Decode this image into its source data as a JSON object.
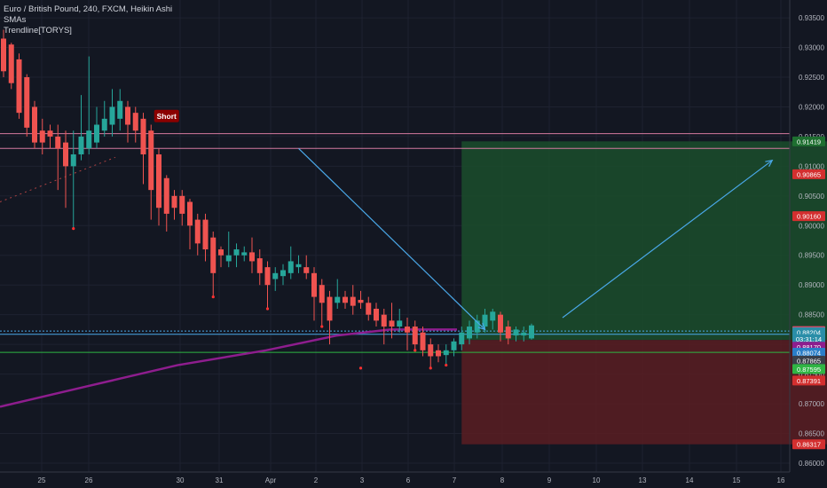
{
  "header": {
    "title": "Euro / British Pound, 240, FXCM, Heikin Ashi",
    "indicator1": "SMAs",
    "indicator2": "Trendline[TORYS]"
  },
  "colors": {
    "background": "#131722",
    "grid": "#1e2230",
    "up": "#26a69a",
    "down": "#ef5350",
    "profit_zone": "#1b4d2b",
    "loss_zone": "#5a1d22",
    "sma": "#8e1d8e",
    "arrow": "#4aa8e8",
    "level_pink": "#d47a9f",
    "level_blue": "#4aa8e8",
    "level_green": "#2fb544"
  },
  "short_label": "Short",
  "chart_data": {
    "type": "candlestick",
    "title": "Euro / British Pound, 240, FXCM, Heikin Ashi",
    "ylim": [
      0.8585,
      0.938
    ],
    "y_ticks": [
      0.935,
      0.93,
      0.925,
      0.92,
      0.915,
      0.91,
      0.905,
      0.9,
      0.895,
      0.89,
      0.885,
      0.88,
      0.875,
      0.87,
      0.865,
      0.86
    ],
    "y_tick_labels": [
      "0.93500",
      "0.93000",
      "0.92500",
      "0.92000",
      "0.91500",
      "0.91000",
      "0.90500",
      "0.90000",
      "0.89500",
      "0.89000",
      "0.88500",
      "0.88000",
      "0.87500",
      "0.87000",
      "0.86500",
      "0.86000"
    ],
    "x_tick_labels": [
      "25",
      "26",
      "30",
      "31",
      "Apr",
      "2",
      "3",
      "6",
      "7",
      "8",
      "9",
      "10",
      "13",
      "14",
      "15",
      "16"
    ],
    "bars_per_day": 6,
    "candles": [
      {
        "o": 0.9315,
        "h": 0.933,
        "l": 0.925,
        "c": 0.926
      },
      {
        "o": 0.9305,
        "h": 0.9308,
        "l": 0.923,
        "c": 0.924
      },
      {
        "o": 0.928,
        "h": 0.929,
        "l": 0.918,
        "c": 0.919
      },
      {
        "o": 0.925,
        "h": 0.9255,
        "l": 0.915,
        "c": 0.9165
      },
      {
        "o": 0.92,
        "h": 0.921,
        "l": 0.913,
        "c": 0.914
      },
      {
        "o": 0.916,
        "h": 0.918,
        "l": 0.912,
        "c": 0.914
      },
      {
        "o": 0.916,
        "h": 0.917,
        "l": 0.913,
        "c": 0.915
      },
      {
        "o": 0.915,
        "h": 0.917,
        "l": 0.906,
        "c": 0.913
      },
      {
        "o": 0.914,
        "h": 0.916,
        "l": 0.903,
        "c": 0.91
      },
      {
        "o": 0.91,
        "h": 0.916,
        "l": 0.8995,
        "c": 0.912
      },
      {
        "o": 0.912,
        "h": 0.922,
        "l": 0.911,
        "c": 0.915
      },
      {
        "o": 0.913,
        "h": 0.9285,
        "l": 0.912,
        "c": 0.916
      },
      {
        "o": 0.914,
        "h": 0.92,
        "l": 0.913,
        "c": 0.917
      },
      {
        "o": 0.916,
        "h": 0.921,
        "l": 0.915,
        "c": 0.918
      },
      {
        "o": 0.917,
        "h": 0.923,
        "l": 0.915,
        "c": 0.92
      },
      {
        "o": 0.918,
        "h": 0.923,
        "l": 0.916,
        "c": 0.921
      },
      {
        "o": 0.92,
        "h": 0.921,
        "l": 0.914,
        "c": 0.917
      },
      {
        "o": 0.919,
        "h": 0.92,
        "l": 0.914,
        "c": 0.916
      },
      {
        "o": 0.918,
        "h": 0.919,
        "l": 0.907,
        "c": 0.912
      },
      {
        "o": 0.916,
        "h": 0.917,
        "l": 0.901,
        "c": 0.906
      },
      {
        "o": 0.912,
        "h": 0.913,
        "l": 0.9,
        "c": 0.903
      },
      {
        "o": 0.908,
        "h": 0.9085,
        "l": 0.899,
        "c": 0.902
      },
      {
        "o": 0.905,
        "h": 0.906,
        "l": 0.901,
        "c": 0.903
      },
      {
        "o": 0.905,
        "h": 0.906,
        "l": 0.9,
        "c": 0.902
      },
      {
        "o": 0.904,
        "h": 0.9045,
        "l": 0.896,
        "c": 0.9
      },
      {
        "o": 0.901,
        "h": 0.902,
        "l": 0.895,
        "c": 0.897
      },
      {
        "o": 0.901,
        "h": 0.902,
        "l": 0.894,
        "c": 0.896
      },
      {
        "o": 0.898,
        "h": 0.899,
        "l": 0.888,
        "c": 0.892
      },
      {
        "o": 0.896,
        "h": 0.8965,
        "l": 0.893,
        "c": 0.895
      },
      {
        "o": 0.894,
        "h": 0.899,
        "l": 0.893,
        "c": 0.895
      },
      {
        "o": 0.895,
        "h": 0.897,
        "l": 0.893,
        "c": 0.896
      },
      {
        "o": 0.895,
        "h": 0.8965,
        "l": 0.894,
        "c": 0.8955
      },
      {
        "o": 0.8955,
        "h": 0.898,
        "l": 0.892,
        "c": 0.894
      },
      {
        "o": 0.8945,
        "h": 0.896,
        "l": 0.89,
        "c": 0.892
      },
      {
        "o": 0.893,
        "h": 0.894,
        "l": 0.886,
        "c": 0.89
      },
      {
        "o": 0.891,
        "h": 0.893,
        "l": 0.889,
        "c": 0.892
      },
      {
        "o": 0.8915,
        "h": 0.8935,
        "l": 0.89,
        "c": 0.8925
      },
      {
        "o": 0.892,
        "h": 0.8965,
        "l": 0.891,
        "c": 0.894
      },
      {
        "o": 0.893,
        "h": 0.895,
        "l": 0.892,
        "c": 0.8935
      },
      {
        "o": 0.893,
        "h": 0.895,
        "l": 0.891,
        "c": 0.892
      },
      {
        "o": 0.892,
        "h": 0.893,
        "l": 0.884,
        "c": 0.888
      },
      {
        "o": 0.89,
        "h": 0.891,
        "l": 0.883,
        "c": 0.887
      },
      {
        "o": 0.888,
        "h": 0.889,
        "l": 0.88,
        "c": 0.884
      },
      {
        "o": 0.887,
        "h": 0.891,
        "l": 0.886,
        "c": 0.888
      },
      {
        "o": 0.888,
        "h": 0.889,
        "l": 0.886,
        "c": 0.887
      },
      {
        "o": 0.888,
        "h": 0.89,
        "l": 0.885,
        "c": 0.8865
      },
      {
        "o": 0.8875,
        "h": 0.889,
        "l": 0.886,
        "c": 0.887
      },
      {
        "o": 0.887,
        "h": 0.888,
        "l": 0.884,
        "c": 0.885
      },
      {
        "o": 0.886,
        "h": 0.887,
        "l": 0.883,
        "c": 0.884
      },
      {
        "o": 0.885,
        "h": 0.886,
        "l": 0.88,
        "c": 0.883
      },
      {
        "o": 0.884,
        "h": 0.887,
        "l": 0.881,
        "c": 0.883
      },
      {
        "o": 0.883,
        "h": 0.886,
        "l": 0.882,
        "c": 0.884
      },
      {
        "o": 0.883,
        "h": 0.8845,
        "l": 0.879,
        "c": 0.882
      },
      {
        "o": 0.883,
        "h": 0.884,
        "l": 0.879,
        "c": 0.88
      },
      {
        "o": 0.882,
        "h": 0.883,
        "l": 0.878,
        "c": 0.879
      },
      {
        "o": 0.88,
        "h": 0.881,
        "l": 0.876,
        "c": 0.878
      },
      {
        "o": 0.879,
        "h": 0.88,
        "l": 0.877,
        "c": 0.878
      },
      {
        "o": 0.8782,
        "h": 0.88,
        "l": 0.8765,
        "c": 0.879
      },
      {
        "o": 0.879,
        "h": 0.881,
        "l": 0.878,
        "c": 0.8805
      },
      {
        "o": 0.88,
        "h": 0.883,
        "l": 0.879,
        "c": 0.882
      },
      {
        "o": 0.881,
        "h": 0.884,
        "l": 0.88,
        "c": 0.883
      },
      {
        "o": 0.882,
        "h": 0.885,
        "l": 0.881,
        "c": 0.884
      },
      {
        "o": 0.883,
        "h": 0.886,
        "l": 0.882,
        "c": 0.885
      },
      {
        "o": 0.884,
        "h": 0.886,
        "l": 0.8825,
        "c": 0.8855
      },
      {
        "o": 0.885,
        "h": 0.8855,
        "l": 0.8805,
        "c": 0.882
      },
      {
        "o": 0.883,
        "h": 0.884,
        "l": 0.88,
        "c": 0.881
      },
      {
        "o": 0.8815,
        "h": 0.883,
        "l": 0.8805,
        "c": 0.8825
      },
      {
        "o": 0.8815,
        "h": 0.883,
        "l": 0.8805,
        "c": 0.882
      },
      {
        "o": 0.881,
        "h": 0.8835,
        "l": 0.8808,
        "c": 0.8832
      }
    ],
    "sma": [
      [
        0,
        0.904
      ],
      [
        30,
        0.905
      ],
      [
        60,
        0.908
      ],
      [
        110,
        0.911
      ],
      [
        130,
        0.913
      ],
      [
        150,
        0.912
      ]
    ],
    "sma2": [
      [
        -1,
        0.872
      ],
      [
        20,
        0.874
      ],
      [
        40,
        0.877
      ],
      [
        52,
        0.8795
      ],
      [
        60,
        0.881
      ],
      [
        68,
        0.882
      ]
    ],
    "horizontal_levels": [
      {
        "price": 0.9155,
        "color": "pink"
      },
      {
        "price": 0.913,
        "color": "pink"
      },
      {
        "price": 0.88225,
        "color": "blue_dotted"
      },
      {
        "price": 0.8817,
        "color": "blue"
      },
      {
        "price": 0.87865,
        "color": "green"
      }
    ],
    "position": {
      "entry": 0.88074,
      "target": 0.91419,
      "stop": 0.86317,
      "start_bar": 59,
      "end_bar": 140
    },
    "arrows": [
      {
        "from": [
          38,
          0.913
        ],
        "to": [
          62,
          0.8825
        ]
      },
      {
        "from": [
          72,
          0.8845
        ],
        "to": [
          99,
          0.911
        ]
      }
    ],
    "short_marker": {
      "bar": 21,
      "price": 0.9195
    },
    "price_labels": [
      {
        "text": "0.91419",
        "bg": "#1e6f30",
        "fg": "#ffffff",
        "price": 0.91419
      },
      {
        "text": "0.90865",
        "bg": "#d32f2f",
        "fg": "#ffffff",
        "price": 0.90865
      },
      {
        "text": "0.90160",
        "bg": "#d32f2f",
        "fg": "#ffffff",
        "price": 0.9016
      },
      {
        "text": "0.88225",
        "bg": "#d34f6f",
        "fg": "#ffffff",
        "price": 0.88225
      },
      {
        "text": "0.88204",
        "bg": "#2a8ea8",
        "fg": "#ffffff",
        "price": 0.88204
      },
      {
        "text": "03:31:14",
        "bg": "#2a8ea8",
        "fg": "#ffffff",
        "price": 0.8809
      },
      {
        "text": "0.88170",
        "bg": "#8e1d8e",
        "fg": "#ffffff",
        "price": 0.8796
      },
      {
        "text": "0.88074",
        "bg": "#2a7ec8",
        "fg": "#ffffff",
        "price": 0.8786
      },
      {
        "text": "0.87865",
        "bg": "#3a3f4a",
        "fg": "#ffffff",
        "price": 0.87725
      },
      {
        "text": "0.87595",
        "bg": "#2fb544",
        "fg": "#ffffff",
        "price": 0.87585
      },
      {
        "text": "0.87391",
        "bg": "#d32f2f",
        "fg": "#ffffff",
        "price": 0.87391
      },
      {
        "text": "0.86317",
        "bg": "#d32f2f",
        "fg": "#ffffff",
        "price": 0.86317
      }
    ]
  }
}
